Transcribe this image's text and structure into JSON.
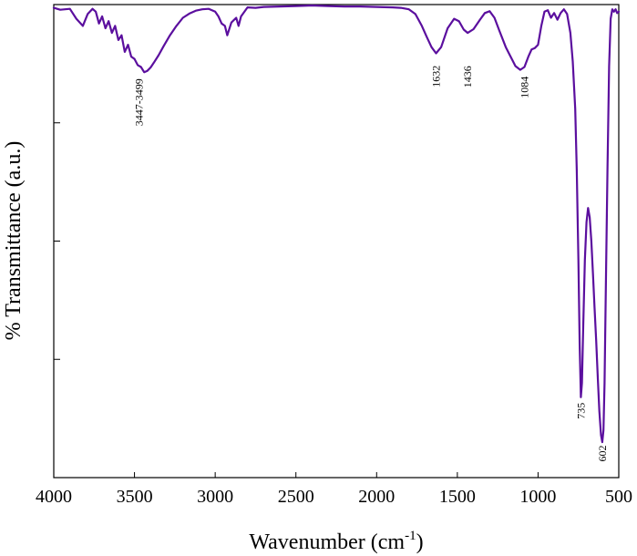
{
  "chart_data": {
    "type": "line",
    "xlabel": "Wavenumber (cm",
    "xlabel_sup": "-1",
    "xlabel_tail": ")",
    "ylabel": "% Transmittance (a.u.)",
    "xlim": [
      4000,
      500
    ],
    "ylim": [
      0,
      1
    ],
    "x_reversed": true,
    "grid": false,
    "line_color": "#5b0f9e",
    "x_ticks": [
      4000,
      3500,
      3000,
      2500,
      2000,
      1500,
      1000,
      500
    ],
    "y_ticks": [
      0.25,
      0.5,
      0.75
    ],
    "peak_labels": [
      {
        "label": "3447-3499",
        "x": 3473,
        "y": 0.855
      },
      {
        "label": "1632",
        "x": 1632,
        "y": 0.883
      },
      {
        "label": "1436",
        "x": 1436,
        "y": 0.882
      },
      {
        "label": "1084",
        "x": 1084,
        "y": 0.86
      },
      {
        "label": "735",
        "x": 735,
        "y": 0.17
      },
      {
        "label": "602",
        "x": 602,
        "y": 0.08
      }
    ],
    "series": [
      {
        "x": [
          4000,
          3960,
          3900,
          3860,
          3820,
          3790,
          3760,
          3740,
          3720,
          3700,
          3680,
          3660,
          3640,
          3620,
          3600,
          3580,
          3560,
          3540,
          3520,
          3500,
          3480,
          3460,
          3440,
          3420,
          3400,
          3380,
          3350,
          3320,
          3280,
          3240,
          3200,
          3160,
          3120,
          3080,
          3040,
          3000,
          2980,
          2960,
          2940,
          2925,
          2900,
          2870,
          2855,
          2840,
          2800,
          2750,
          2700,
          2600,
          2500,
          2400,
          2300,
          2200,
          2100,
          2000,
          1900,
          1850,
          1800,
          1760,
          1720,
          1690,
          1660,
          1632,
          1600,
          1560,
          1520,
          1490,
          1460,
          1436,
          1400,
          1360,
          1330,
          1300,
          1270,
          1240,
          1200,
          1170,
          1140,
          1110,
          1084,
          1060,
          1040,
          1020,
          1000,
          980,
          960,
          940,
          920,
          900,
          880,
          860,
          840,
          820,
          800,
          785,
          770,
          760,
          750,
          742,
          735,
          728,
          720,
          710,
          700,
          690,
          680,
          670,
          660,
          650,
          640,
          630,
          620,
          610,
          602,
          595,
          588,
          580,
          570,
          560,
          550,
          540,
          530,
          520,
          510,
          500
        ],
        "y": [
          0.993,
          0.989,
          0.991,
          0.97,
          0.955,
          0.98,
          0.991,
          0.985,
          0.96,
          0.975,
          0.95,
          0.965,
          0.94,
          0.955,
          0.925,
          0.935,
          0.9,
          0.915,
          0.89,
          0.885,
          0.872,
          0.868,
          0.857,
          0.86,
          0.867,
          0.877,
          0.893,
          0.912,
          0.935,
          0.955,
          0.972,
          0.981,
          0.987,
          0.99,
          0.991,
          0.985,
          0.975,
          0.96,
          0.955,
          0.935,
          0.962,
          0.972,
          0.955,
          0.975,
          0.994,
          0.993,
          0.995,
          0.996,
          0.997,
          0.998,
          0.997,
          0.996,
          0.996,
          0.995,
          0.994,
          0.993,
          0.99,
          0.98,
          0.955,
          0.932,
          0.91,
          0.897,
          0.91,
          0.95,
          0.97,
          0.965,
          0.947,
          0.94,
          0.948,
          0.968,
          0.982,
          0.986,
          0.972,
          0.945,
          0.91,
          0.89,
          0.87,
          0.862,
          0.868,
          0.89,
          0.905,
          0.908,
          0.915,
          0.955,
          0.985,
          0.988,
          0.972,
          0.982,
          0.968,
          0.982,
          0.99,
          0.98,
          0.94,
          0.88,
          0.78,
          0.65,
          0.46,
          0.28,
          0.17,
          0.2,
          0.32,
          0.46,
          0.54,
          0.57,
          0.55,
          0.5,
          0.43,
          0.36,
          0.29,
          0.21,
          0.14,
          0.09,
          0.075,
          0.1,
          0.2,
          0.4,
          0.65,
          0.87,
          0.97,
          0.99,
          0.985,
          0.99,
          0.982,
          0.985
        ]
      }
    ]
  }
}
